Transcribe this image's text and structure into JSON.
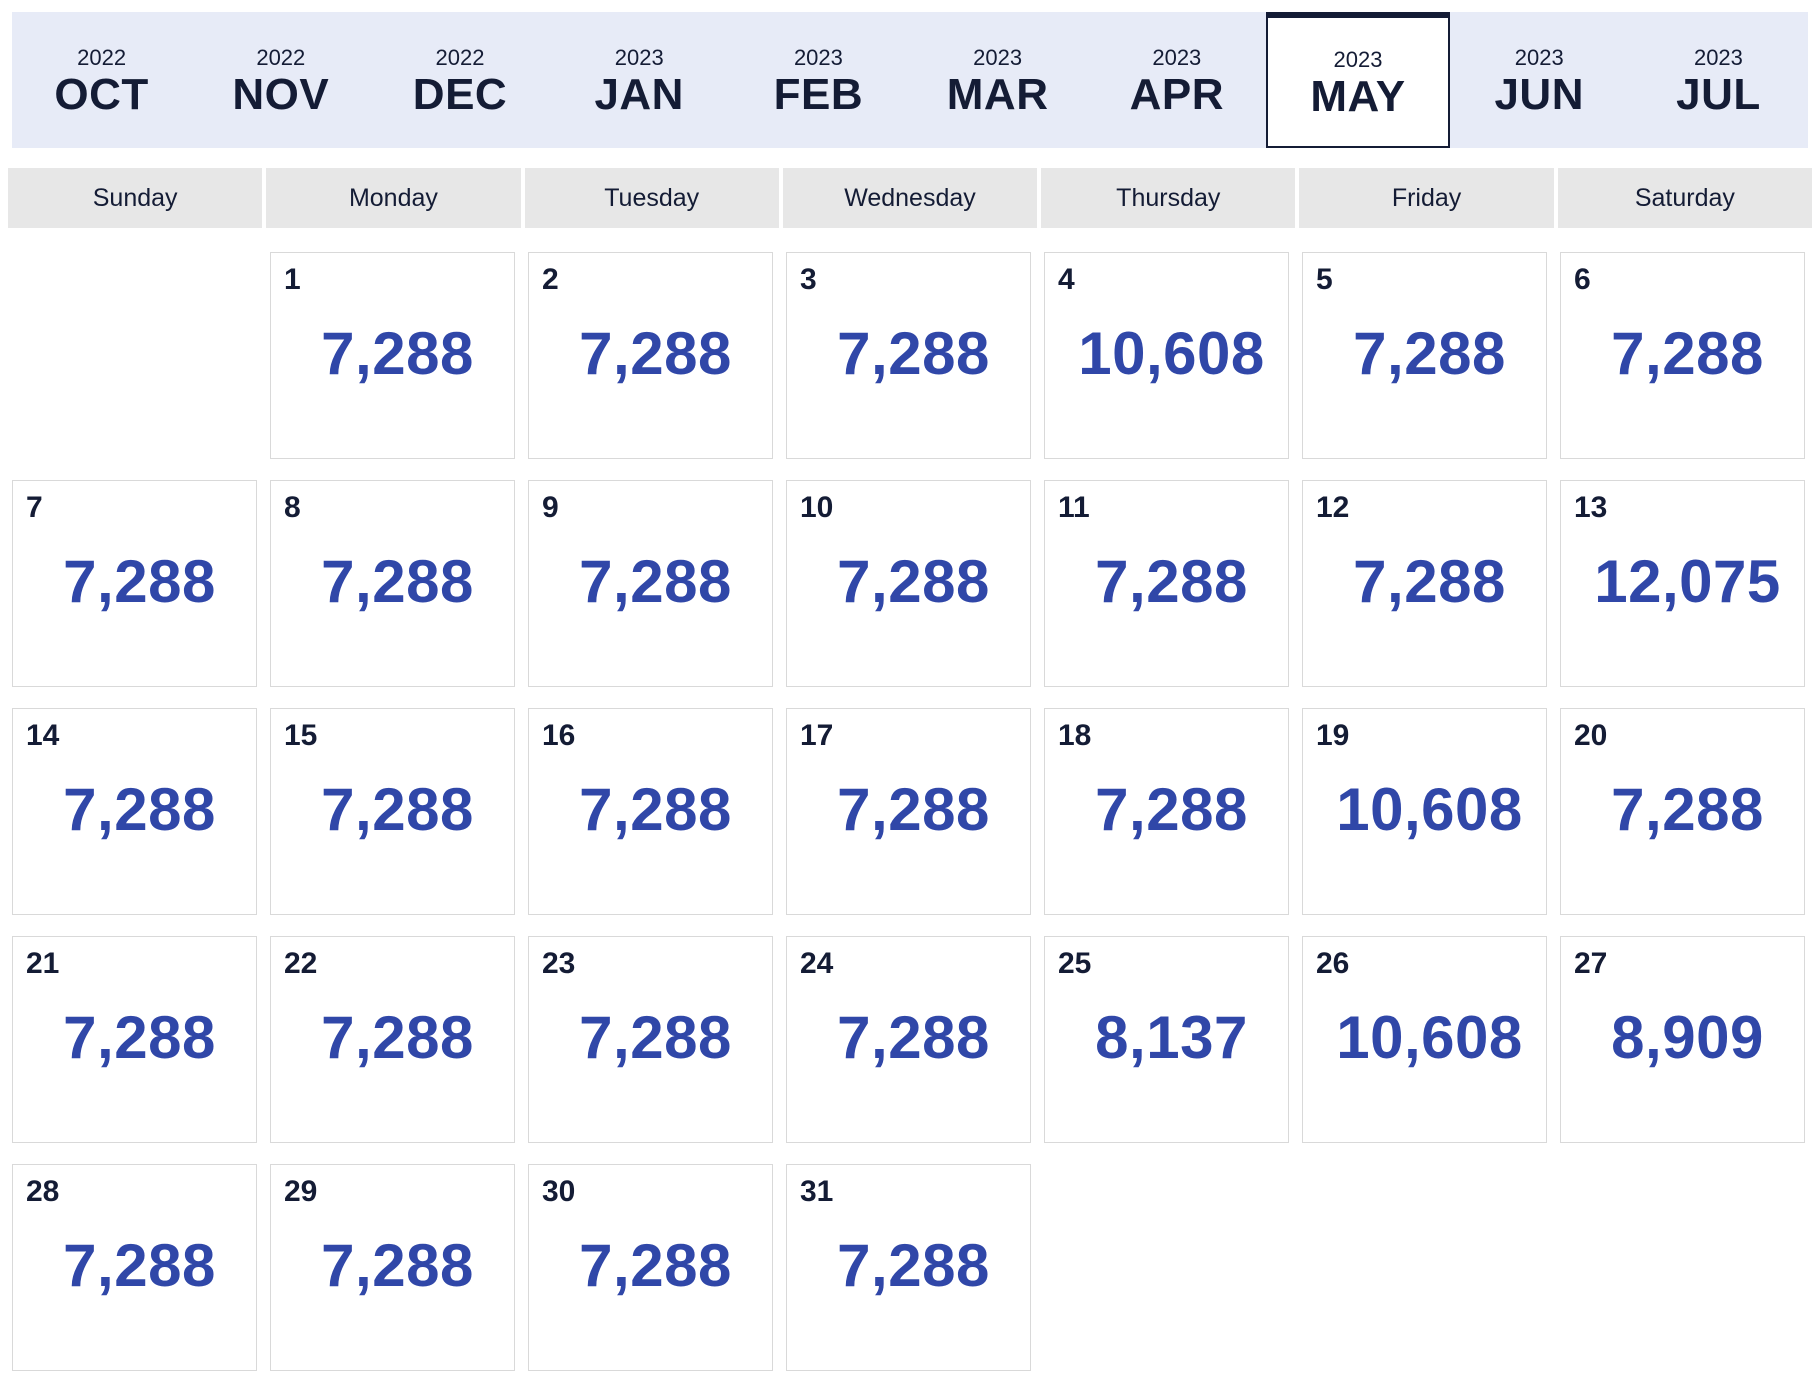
{
  "months": [
    {
      "year": "2022",
      "month": "OCT",
      "selected": false
    },
    {
      "year": "2022",
      "month": "NOV",
      "selected": false
    },
    {
      "year": "2022",
      "month": "DEC",
      "selected": false
    },
    {
      "year": "2023",
      "month": "JAN",
      "selected": false
    },
    {
      "year": "2023",
      "month": "FEB",
      "selected": false
    },
    {
      "year": "2023",
      "month": "MAR",
      "selected": false
    },
    {
      "year": "2023",
      "month": "APR",
      "selected": false
    },
    {
      "year": "2023",
      "month": "MAY",
      "selected": true
    },
    {
      "year": "2023",
      "month": "JUN",
      "selected": false
    },
    {
      "year": "2023",
      "month": "JUL",
      "selected": false
    }
  ],
  "weekdays": [
    "Sunday",
    "Monday",
    "Tuesday",
    "Wednesday",
    "Thursday",
    "Friday",
    "Saturday"
  ],
  "leading_blank_days": 1,
  "days": [
    {
      "day": "1",
      "price": "7,288"
    },
    {
      "day": "2",
      "price": "7,288"
    },
    {
      "day": "3",
      "price": "7,288"
    },
    {
      "day": "4",
      "price": "10,608"
    },
    {
      "day": "5",
      "price": "7,288"
    },
    {
      "day": "6",
      "price": "7,288"
    },
    {
      "day": "7",
      "price": "7,288"
    },
    {
      "day": "8",
      "price": "7,288"
    },
    {
      "day": "9",
      "price": "7,288"
    },
    {
      "day": "10",
      "price": "7,288"
    },
    {
      "day": "11",
      "price": "7,288"
    },
    {
      "day": "12",
      "price": "7,288"
    },
    {
      "day": "13",
      "price": "12,075"
    },
    {
      "day": "14",
      "price": "7,288"
    },
    {
      "day": "15",
      "price": "7,288"
    },
    {
      "day": "16",
      "price": "7,288"
    },
    {
      "day": "17",
      "price": "7,288"
    },
    {
      "day": "18",
      "price": "7,288"
    },
    {
      "day": "19",
      "price": "10,608"
    },
    {
      "day": "20",
      "price": "7,288"
    },
    {
      "day": "21",
      "price": "7,288"
    },
    {
      "day": "22",
      "price": "7,288"
    },
    {
      "day": "23",
      "price": "7,288"
    },
    {
      "day": "24",
      "price": "7,288"
    },
    {
      "day": "25",
      "price": "8,137"
    },
    {
      "day": "26",
      "price": "10,608"
    },
    {
      "day": "27",
      "price": "8,909"
    },
    {
      "day": "28",
      "price": "7,288"
    },
    {
      "day": "29",
      "price": "7,288"
    },
    {
      "day": "30",
      "price": "7,288"
    },
    {
      "day": "31",
      "price": "7,288"
    }
  ],
  "colors": {
    "price": "#3047a8",
    "text_dark": "#141c35",
    "tab_bar_bg": "#e7ebf7",
    "weekday_bg": "#e7e7e7",
    "cell_border": "#d9d9d9"
  }
}
